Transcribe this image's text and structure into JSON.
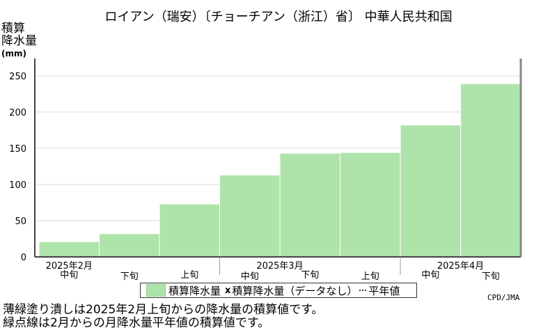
{
  "title": "ロイアン（瑞安）〔チョーチアン（浙江）省〕 中華人民共和国",
  "ylabel_lines": [
    "積算",
    "降水量"
  ],
  "yunit": "(mm)",
  "legend": {
    "item1": "積算降水量",
    "item2_mark": "x",
    "item2": "積算降水量（データなし）",
    "item3": "平年値"
  },
  "credit": "CPD/JMA",
  "notes": [
    "薄緑塗り潰しは2025年2月上旬からの降水量の積算値です。",
    "緑点線は2月からの月降水量平年値の積算値です。"
  ],
  "colors": {
    "fill": "#aee4aa",
    "edge": "#ffffff",
    "grid": "#d9d9d9"
  },
  "chart_data": {
    "type": "area",
    "categories": [
      "中旬",
      "下旬",
      "上旬",
      "中旬",
      "下旬",
      "上旬",
      "中旬",
      "下旬"
    ],
    "months": [
      {
        "label": "2025年2月",
        "at": 0
      },
      {
        "label": "2025年3月",
        "at": 3.5
      },
      {
        "label": "2025年4月",
        "at": 6.5
      }
    ],
    "values": [
      21,
      32,
      73,
      113,
      143,
      144,
      182,
      239
    ],
    "ylim": [
      0,
      270
    ],
    "yticks": [
      0,
      50,
      100,
      150,
      200,
      250
    ],
    "grid": true
  }
}
